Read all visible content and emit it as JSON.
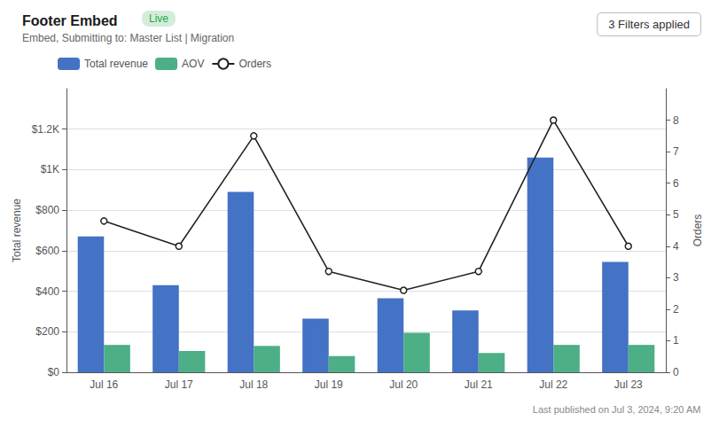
{
  "chart_data": {
    "type": "bar",
    "title": "Footer Embed",
    "subtitle": "Embed, Submitting to: Master List | Migration",
    "annotations": [
      "Live",
      "3 Filters applied",
      "Last published on Jul 3, 2024, 9:20 AM"
    ],
    "categories": [
      "Jul 16",
      "Jul 17",
      "Jul 18",
      "Jul 19",
      "Jul 20",
      "Jul 21",
      "Jul 22",
      "Jul 23"
    ],
    "series": [
      {
        "name": "Total revenue",
        "type": "bar",
        "color": "#4472c4",
        "values": [
          670,
          430,
          890,
          265,
          365,
          305,
          1060,
          545
        ]
      },
      {
        "name": "AOV",
        "type": "bar",
        "color": "#4caf86",
        "values": [
          135,
          105,
          130,
          80,
          195,
          95,
          135,
          135
        ]
      },
      {
        "name": "Orders",
        "type": "line",
        "color": "#222222",
        "marker": "circle",
        "axis": "y2",
        "values": [
          4.8,
          4.0,
          7.5,
          3.2,
          2.6,
          3.2,
          8.0,
          4.0
        ]
      }
    ],
    "ylabel": "Total revenue",
    "y2label": "Orders",
    "ylim": [
      0,
      1400
    ],
    "yticks": [
      {
        "value": 0,
        "label": "$0"
      },
      {
        "value": 200,
        "label": "$200"
      },
      {
        "value": 400,
        "label": "$400"
      },
      {
        "value": 600,
        "label": "$600"
      },
      {
        "value": 800,
        "label": "$800"
      },
      {
        "value": 1000,
        "label": "$1K"
      },
      {
        "value": 1200,
        "label": "$1.2K"
      }
    ],
    "y2lim": [
      0,
      9
    ],
    "y2ticks": [
      0,
      1,
      2,
      3,
      4,
      5,
      6,
      7,
      8
    ],
    "grid": true,
    "legend": "top"
  }
}
